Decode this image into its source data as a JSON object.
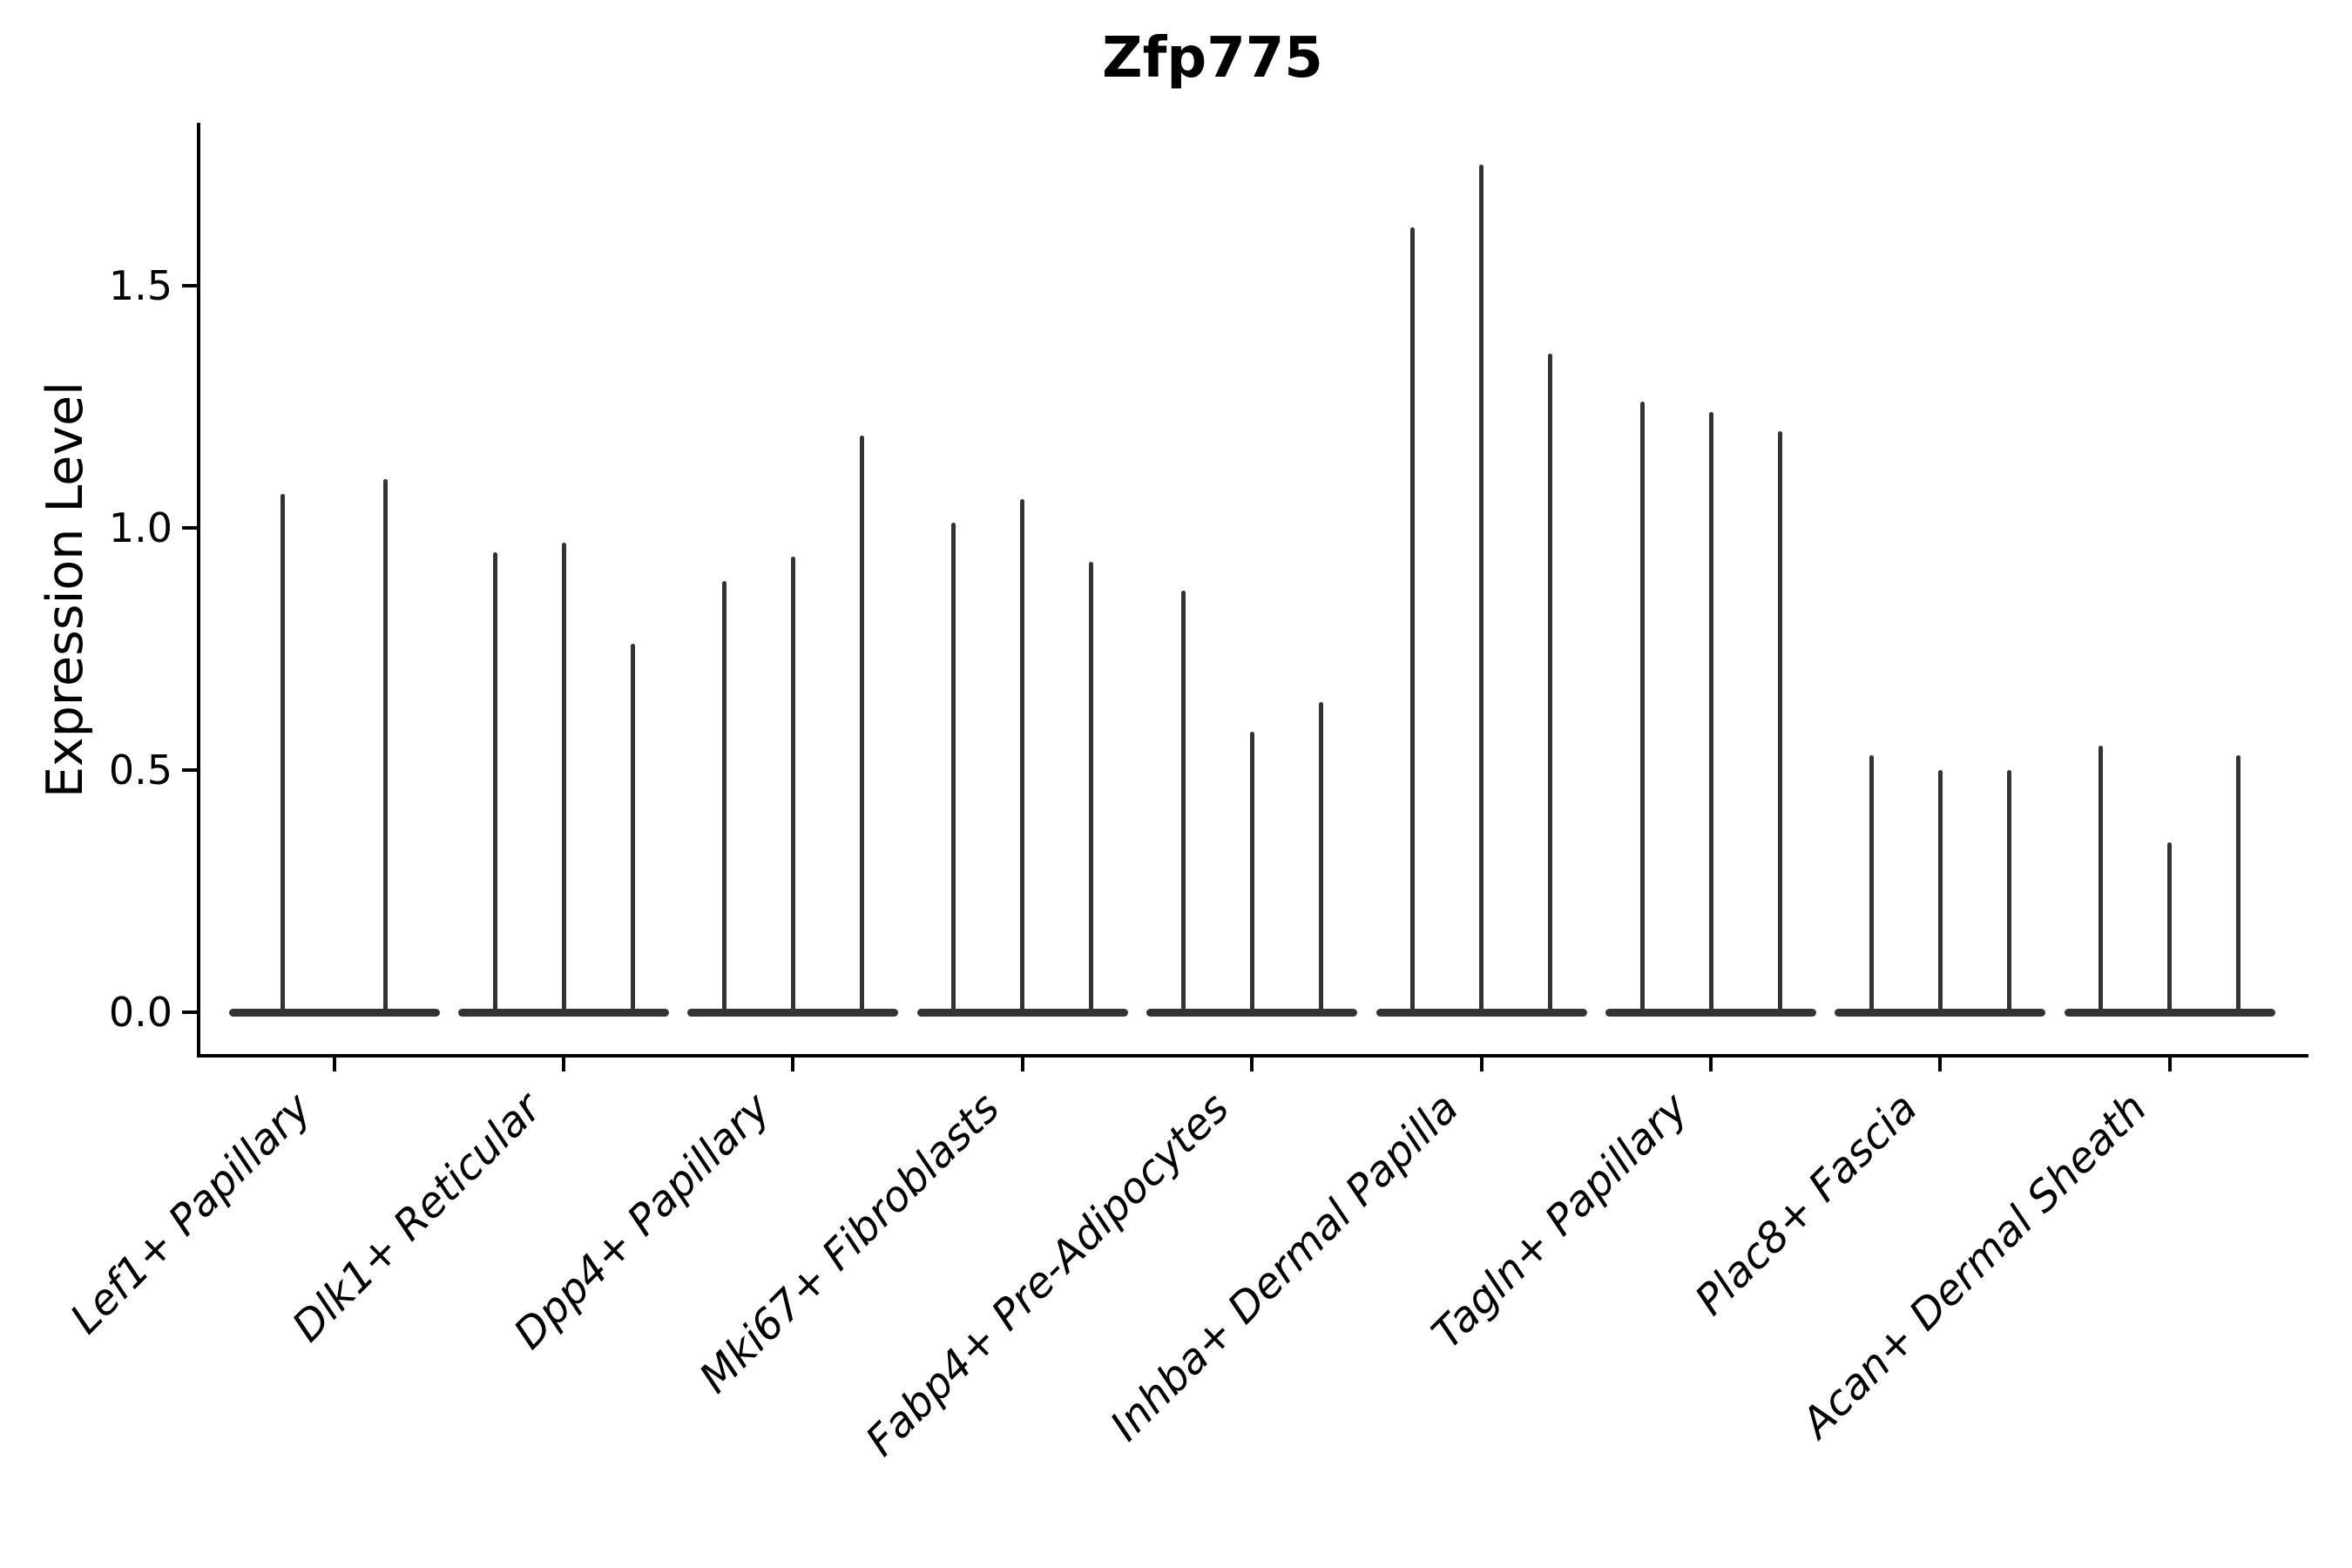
{
  "chart_data": {
    "type": "violin",
    "title": "Zfp775",
    "ylabel": "Expression Level",
    "xlabel": "",
    "grid": false,
    "legend_position": "none",
    "ylim": [
      -0.09,
      1.84
    ],
    "ytick_labels": [
      "0.0",
      "0.5",
      "1.0",
      "1.5"
    ],
    "ytick_values": [
      0.0,
      0.5,
      1.0,
      1.5
    ],
    "categories": [
      "Lef1+ Papillary",
      "Dlk1+ Reticular",
      "Dpp4+ Papillary",
      "Mki67+ Fibroblasts",
      "Fabp4+ Pre-Adipocytes",
      "Inhba+ Dermal Papilla",
      "Tagln+ Papillary",
      "Plac8+ Fascia",
      "Acan+ Dermal Sheath"
    ],
    "violin_maxima": [
      [
        1.07,
        1.1
      ],
      [
        0.95,
        0.97,
        0.76
      ],
      [
        0.89,
        0.94,
        1.19
      ],
      [
        1.01,
        1.06,
        0.93
      ],
      [
        0.87,
        0.58,
        0.64
      ],
      [
        1.62,
        1.75,
        1.36
      ],
      [
        1.26,
        1.24,
        1.2
      ],
      [
        0.53,
        0.5,
        0.5
      ],
      [
        0.55,
        0.35,
        0.53
      ]
    ],
    "violin_body_value": 0.0,
    "line_color": "#333333",
    "axis_color": "#000000"
  }
}
